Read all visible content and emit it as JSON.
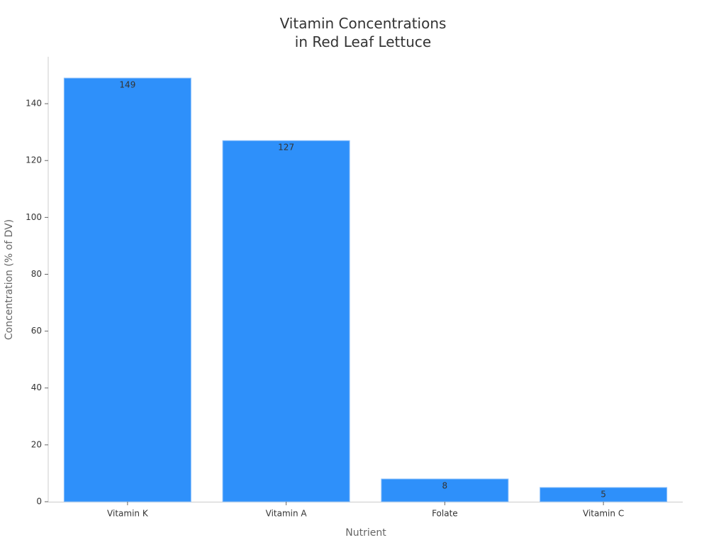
{
  "chart_data": {
    "type": "bar",
    "title": "Vitamin Concentrations\nin Red Leaf Lettuce",
    "x_label": "Nutrient",
    "y_label": "Concentration (% of DV)",
    "categories": [
      "Vitamin K",
      "Vitamin A",
      "Folate",
      "Vitamin C"
    ],
    "values": [
      149,
      127,
      8,
      5
    ],
    "color": "#2e90fa",
    "ylim": [
      0,
      156.5
    ],
    "yticks": [
      0,
      20,
      40,
      60,
      80,
      100,
      120,
      140
    ],
    "grid": false
  }
}
